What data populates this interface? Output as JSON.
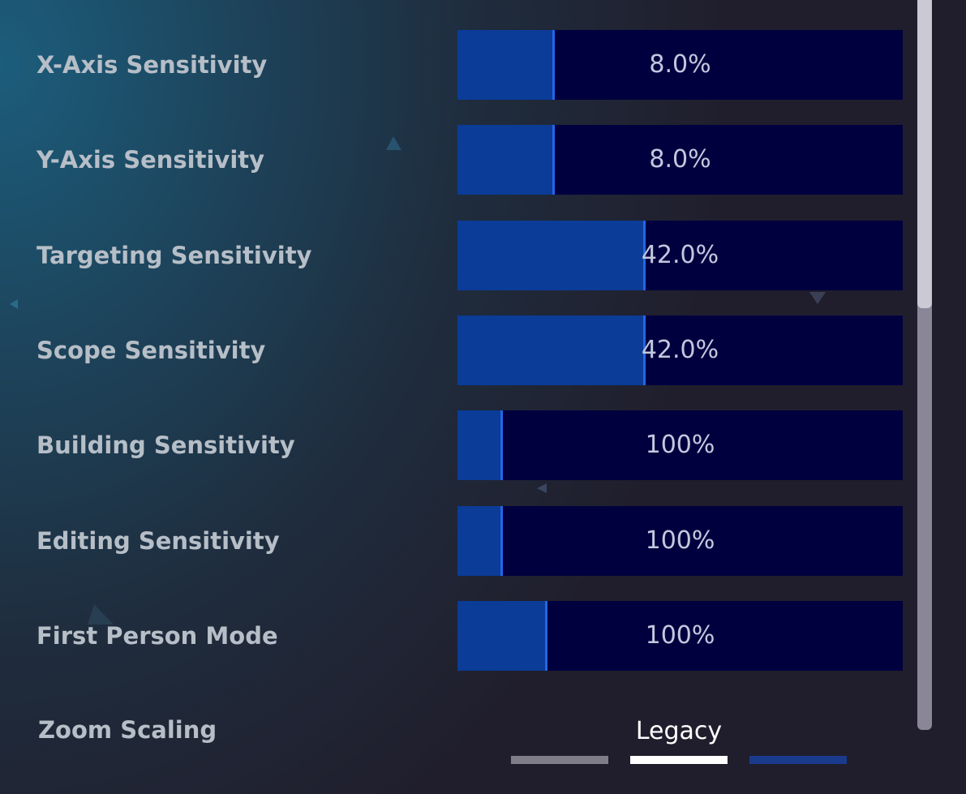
{
  "settings": {
    "rows": [
      {
        "label": "X-Axis Sensitivity",
        "value": "8.0%"
      },
      {
        "label": "Y-Axis Sensitivity",
        "value": "8.0%"
      },
      {
        "label": "Targeting Sensitivity",
        "value": "42.0%"
      },
      {
        "label": "Scope Sensitivity",
        "value": "42.0%"
      },
      {
        "label": "Building Sensitivity",
        "value": "100%"
      },
      {
        "label": "Editing Sensitivity",
        "value": "100%"
      },
      {
        "label": "First Person Mode",
        "value": "100%"
      }
    ]
  },
  "zoom_scaling": {
    "label": "Zoom Scaling",
    "value": "Legacy"
  }
}
